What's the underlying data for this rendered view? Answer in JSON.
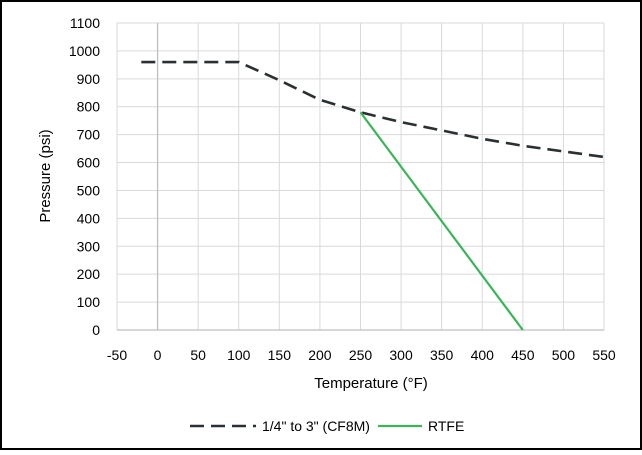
{
  "chart_data": {
    "type": "line",
    "title": "",
    "xlabel": "Temperature (°F)",
    "ylabel": "Pressure (psi)",
    "xlim": [
      -50,
      550
    ],
    "ylim": [
      0,
      1100
    ],
    "x_ticks": [
      -50,
      0,
      50,
      100,
      150,
      200,
      250,
      300,
      350,
      400,
      450,
      500,
      550
    ],
    "y_ticks": [
      0,
      100,
      200,
      300,
      400,
      500,
      600,
      700,
      800,
      900,
      1000,
      1100
    ],
    "grid": true,
    "legend_position": "bottom",
    "series": [
      {
        "name": "1/4\" to 3\" (CF8M)",
        "style": "dashed",
        "color": "#2b3033",
        "x": [
          -20,
          100,
          150,
          200,
          250,
          300,
          350,
          400,
          450,
          500,
          550
        ],
        "y": [
          960,
          960,
          895,
          825,
          780,
          745,
          715,
          685,
          660,
          640,
          620
        ]
      },
      {
        "name": "RTFE",
        "style": "solid",
        "color": "#3cb55a",
        "x": [
          250,
          450
        ],
        "y": [
          780,
          0
        ]
      }
    ]
  }
}
